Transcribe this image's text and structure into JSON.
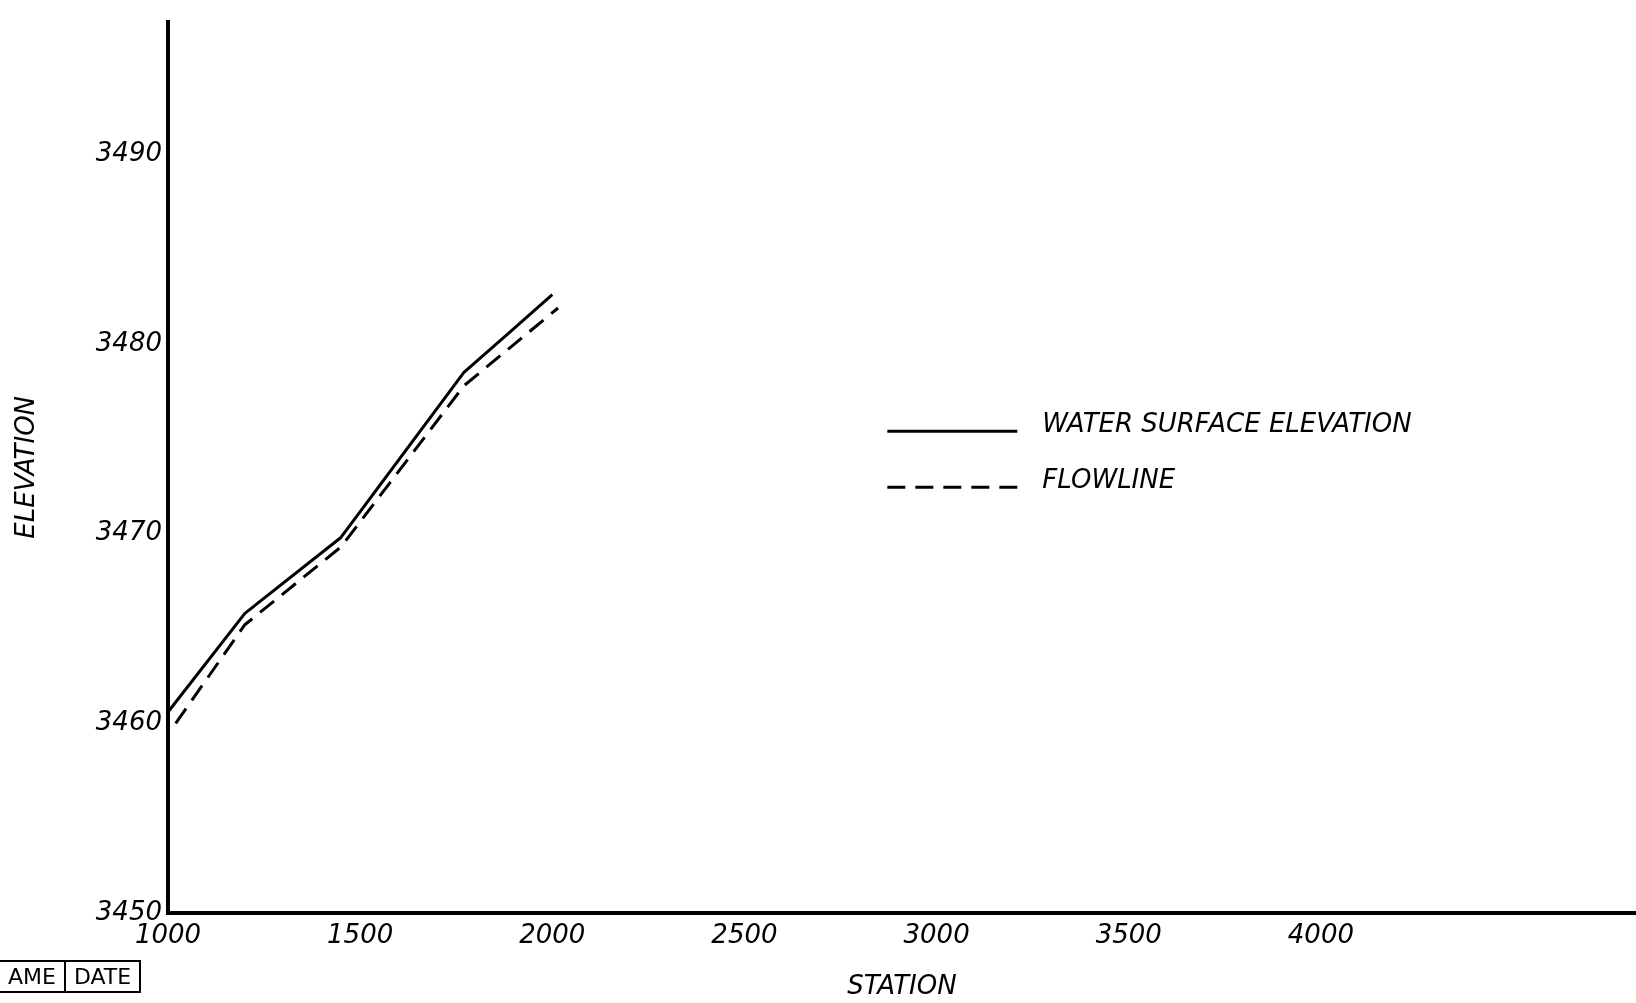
{
  "chart_data": {
    "type": "line",
    "xlabel": "STATION",
    "ylabel": "ELEVATION",
    "xlim": [
      1000,
      4820
    ],
    "ylim": [
      3450,
      3497
    ],
    "xticks": [
      1000,
      1500,
      2000,
      2500,
      3000,
      3500,
      4000
    ],
    "yticks": [
      3450,
      3460,
      3470,
      3480,
      3490
    ],
    "grid": false,
    "legend": "right",
    "marker": "none",
    "series": [
      {
        "name": "WATER SURFACE ELEVATION",
        "color": "#000000",
        "line_style": "solid",
        "x": [
          1000,
          1200,
          1450,
          1770,
          2000
        ],
        "values": [
          3460.6,
          3465.8,
          3469.8,
          3478.5,
          3482.6
        ]
      },
      {
        "name": "FLOWLINE",
        "color": "#000000",
        "line_style": "dashed",
        "x": [
          1020,
          1200,
          1450,
          1770,
          2015
        ],
        "values": [
          3460,
          3465.2,
          3469.3,
          3477.8,
          3481.9
        ]
      }
    ],
    "annotations": [
      "AME",
      "DATE"
    ]
  }
}
